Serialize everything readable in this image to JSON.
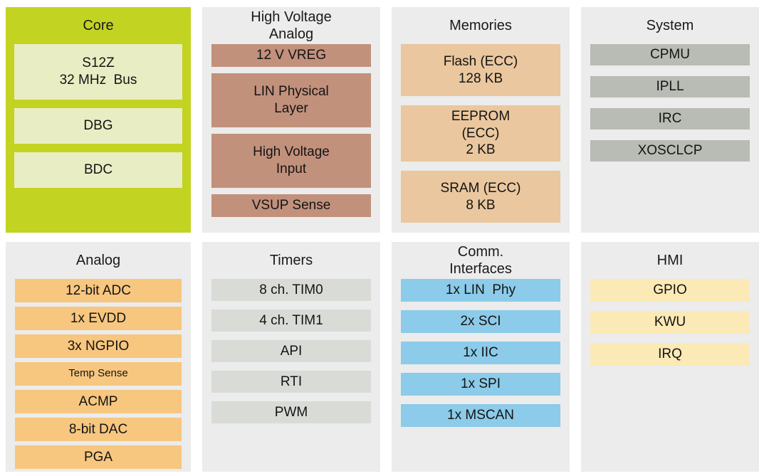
{
  "diagram": {
    "type": "mcu-block-diagram",
    "text_color": "#1a1a1a",
    "background_color": "#ffffff",
    "panel_background_default": "#ebeceb"
  },
  "panels": [
    {
      "id": "core",
      "title": "Core",
      "colors": {
        "panel": "#c3d322",
        "item": "#e9edc3"
      },
      "items": [
        {
          "label": "S12Z\n32 MHz  Bus"
        },
        {
          "label": "DBG"
        },
        {
          "label": "BDC"
        }
      ]
    },
    {
      "id": "hva",
      "title": "High Voltage\nAnalog",
      "colors": {
        "panel": "#ebeceb",
        "item": "#c2917c"
      },
      "items": [
        {
          "label": "12 V VREG"
        },
        {
          "label": "LIN Physical\nLayer"
        },
        {
          "label": "High Voltage\nInput"
        },
        {
          "label": "VSUP Sense"
        }
      ]
    },
    {
      "id": "mem",
      "title": "Memories",
      "colors": {
        "panel": "#ebeceb",
        "item": "#eac79e"
      },
      "items": [
        {
          "label": "Flash (ECC)\n128 KB"
        },
        {
          "label": "EEPROM\n(ECC)\n2 KB"
        },
        {
          "label": "SRAM (ECC)\n8 KB"
        }
      ]
    },
    {
      "id": "sys",
      "title": "System",
      "colors": {
        "panel": "#ebeceb",
        "item": "#b8bcb4"
      },
      "items": [
        {
          "label": "CPMU"
        },
        {
          "label": "IPLL"
        },
        {
          "label": "IRC"
        },
        {
          "label": "XOSCLCP"
        }
      ]
    },
    {
      "id": "analog",
      "title": "Analog",
      "colors": {
        "panel": "#ebeceb",
        "item": "#f7c67f"
      },
      "items": [
        {
          "label": "12-bit ADC"
        },
        {
          "label": "1x EVDD"
        },
        {
          "label": "3x NGPIO"
        },
        {
          "label": "Temp Sense"
        },
        {
          "label": "ACMP"
        },
        {
          "label": "8-bit DAC"
        },
        {
          "label": "PGA"
        }
      ]
    },
    {
      "id": "timers",
      "title": "Timers",
      "colors": {
        "panel": "#ebeceb",
        "item": "#d9dcd6"
      },
      "items": [
        {
          "label": "8 ch. TIM0"
        },
        {
          "label": "4 ch. TIM1"
        },
        {
          "label": "API"
        },
        {
          "label": "RTI"
        },
        {
          "label": "PWM"
        }
      ]
    },
    {
      "id": "comm",
      "title": "Comm.\nInterfaces",
      "colors": {
        "panel": "#ebeceb",
        "item": "#8ccbe9"
      },
      "items": [
        {
          "label": "1x LIN  Phy"
        },
        {
          "label": "2x SCI"
        },
        {
          "label": "1x IIC"
        },
        {
          "label": "1x SPI"
        },
        {
          "label": "1x MSCAN"
        }
      ]
    },
    {
      "id": "hmi",
      "title": "HMI",
      "colors": {
        "panel": "#ebeceb",
        "item": "#fbe9b6"
      },
      "items": [
        {
          "label": "GPIO"
        },
        {
          "label": "KWU"
        },
        {
          "label": "IRQ"
        }
      ]
    }
  ]
}
